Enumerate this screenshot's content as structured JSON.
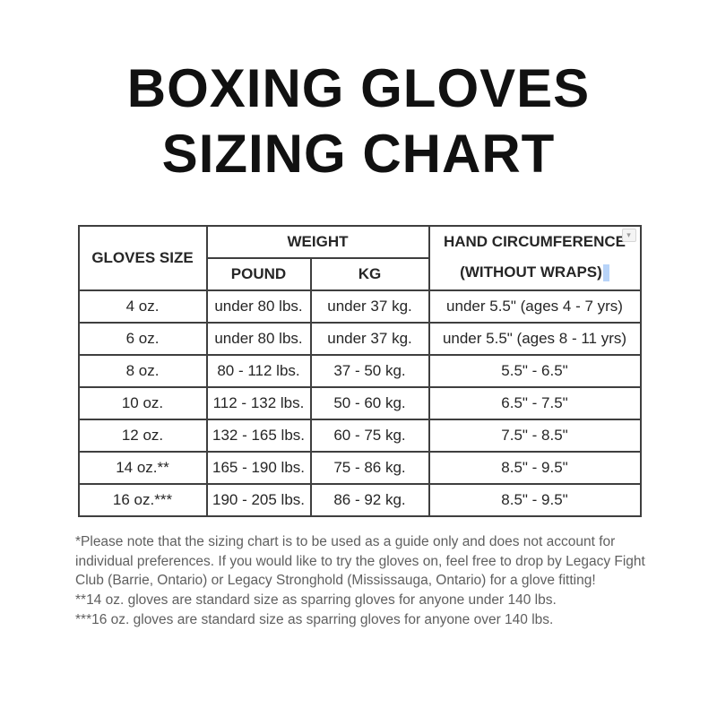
{
  "title": {
    "line1": "BOXING GLOVES",
    "line2": "SIZING CHART"
  },
  "table": {
    "header": {
      "gloves_size": "GLOVES SIZE",
      "weight": "WEIGHT",
      "pound": "POUND",
      "kg": "KG",
      "hand_circumference_line1": "HAND CIRCUMFERENCE",
      "hand_circumference_line2": "(WITHOUT WRAPS)"
    },
    "rows": [
      {
        "size": "4 oz.",
        "pound": "under 80 lbs.",
        "kg": "under 37 kg.",
        "hand": "under 5.5\" (ages 4 - 7 yrs)"
      },
      {
        "size": "6 oz.",
        "pound": "under 80 lbs.",
        "kg": "under 37 kg.",
        "hand": "under 5.5\" (ages 8 - 11 yrs)"
      },
      {
        "size": "8 oz.",
        "pound": "80 - 112 lbs.",
        "kg": "37 - 50 kg.",
        "hand": "5.5\" - 6.5\""
      },
      {
        "size": "10 oz.",
        "pound": "112 - 132 lbs.",
        "kg": "50 - 60 kg.",
        "hand": "6.5\" - 7.5\""
      },
      {
        "size": "12 oz.",
        "pound": "132 - 165 lbs.",
        "kg": "60 - 75 kg.",
        "hand": "7.5\" - 8.5\""
      },
      {
        "size": "14 oz.**",
        "pound": "165 - 190 lbs.",
        "kg": "75 - 86 kg.",
        "hand": "8.5\" - 9.5\""
      },
      {
        "size": "16 oz.***",
        "pound": "190 - 205 lbs.",
        "kg": "86 - 92 kg.",
        "hand": "8.5\" - 9.5\""
      }
    ]
  },
  "icons": {
    "chevron_down_glyph": "▾"
  },
  "colors": {
    "highlight_blue": "#b7d3f8",
    "table_border": "#3f3f3f",
    "title_text": "#111111",
    "note_text": "#5f5f5f"
  },
  "notes": [
    "*Please note that the sizing chart is to be used as a guide only and does not account for individual preferences. If you would like to try the gloves on, feel free to drop by Legacy Fight Club (Barrie, Ontario) or Legacy Stronghold (Mississauga, Ontario) for a glove fitting!",
    "**14 oz. gloves are standard size as sparring gloves for anyone under 140 lbs.",
    "***16 oz. gloves are standard size as sparring gloves for anyone over 140 lbs."
  ]
}
